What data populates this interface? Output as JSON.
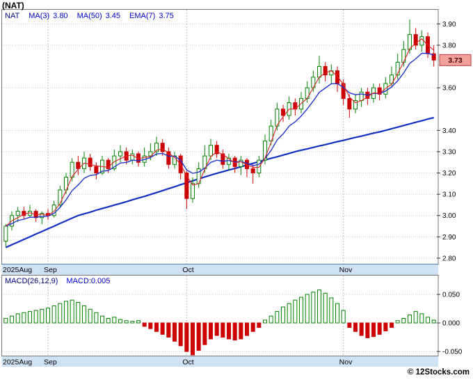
{
  "title": "(NAT)",
  "watermark": "© 12Stocks.com",
  "main_legend": {
    "symbol": "NAT",
    "items": [
      {
        "label": "MA(3)",
        "value": "3.80"
      },
      {
        "label": "MA(50)",
        "value": "3.45"
      },
      {
        "label": "EMA(7)",
        "value": "3.75"
      }
    ]
  },
  "macd_legend": {
    "label": "MACD(26,12,9)",
    "value_label": "MACD:0.005"
  },
  "colors": {
    "up": "#008000",
    "down": "#cc0000",
    "ma3": "#dd2222",
    "ema7": "#2233cc",
    "ma50": "#1030c0",
    "band_bg": "#cfe2f4",
    "band_line": "#4f7fb5",
    "badge_bg": "#f1a09a",
    "badge_border": "#b84040",
    "grid": "#c9c9c9",
    "border": "#777777"
  },
  "chart_data": [
    {
      "type": "candlestick",
      "title": "(NAT)",
      "ylabel": "Price",
      "ylim": [
        2.78,
        3.96
      ],
      "current_price": "3.73",
      "y_ticks": [
        {
          "label": "3.90",
          "value": 3.9
        },
        {
          "label": "3.80",
          "value": 3.8
        },
        {
          "label": "3.60",
          "value": 3.6
        },
        {
          "label": "3.40",
          "value": 3.4
        },
        {
          "label": "3.30",
          "value": 3.3
        },
        {
          "label": "3.20",
          "value": 3.2
        },
        {
          "label": "3.10",
          "value": 3.1
        },
        {
          "label": "3.00",
          "value": 3.0
        },
        {
          "label": "2.90",
          "value": 2.9
        },
        {
          "label": "2.80",
          "value": 2.8
        }
      ],
      "x_axis_labels": [
        {
          "label": "2025Aug",
          "index": 0
        },
        {
          "label": "Sep",
          "index": 7
        },
        {
          "label": "Oct",
          "index": 30
        },
        {
          "label": "Nov",
          "index": 56
        }
      ],
      "month_gridline_indices": [
        7,
        30,
        56
      ],
      "ohlc_format": "open-high-low-close",
      "candles_ohlc": [
        [
          2.88,
          2.96,
          2.85,
          2.95
        ],
        [
          2.95,
          3.02,
          2.93,
          3.0
        ],
        [
          3.0,
          3.04,
          2.97,
          3.02
        ],
        [
          3.02,
          3.04,
          2.98,
          3.0
        ],
        [
          3.0,
          3.05,
          2.99,
          3.02
        ],
        [
          3.02,
          3.03,
          2.97,
          2.99
        ],
        [
          2.99,
          3.02,
          2.96,
          3.01
        ],
        [
          3.01,
          3.03,
          2.98,
          3.0
        ],
        [
          3.0,
          3.07,
          2.99,
          3.05
        ],
        [
          3.05,
          3.14,
          3.04,
          3.12
        ],
        [
          3.12,
          3.2,
          3.1,
          3.18
        ],
        [
          3.18,
          3.27,
          3.16,
          3.25
        ],
        [
          3.25,
          3.28,
          3.19,
          3.22
        ],
        [
          3.22,
          3.3,
          3.2,
          3.27
        ],
        [
          3.27,
          3.29,
          3.21,
          3.23
        ],
        [
          3.23,
          3.25,
          3.17,
          3.2
        ],
        [
          3.2,
          3.28,
          3.19,
          3.26
        ],
        [
          3.26,
          3.27,
          3.2,
          3.22
        ],
        [
          3.22,
          3.31,
          3.21,
          3.28
        ],
        [
          3.28,
          3.33,
          3.25,
          3.3
        ],
        [
          3.3,
          3.32,
          3.24,
          3.26
        ],
        [
          3.26,
          3.31,
          3.24,
          3.29
        ],
        [
          3.29,
          3.3,
          3.23,
          3.25
        ],
        [
          3.25,
          3.32,
          3.23,
          3.28
        ],
        [
          3.28,
          3.34,
          3.26,
          3.3
        ],
        [
          3.3,
          3.37,
          3.28,
          3.34
        ],
        [
          3.34,
          3.36,
          3.28,
          3.3
        ],
        [
          3.3,
          3.32,
          3.22,
          3.24
        ],
        [
          3.24,
          3.3,
          3.22,
          3.28
        ],
        [
          3.28,
          3.29,
          3.17,
          3.2
        ],
        [
          3.2,
          3.21,
          3.03,
          3.08
        ],
        [
          3.08,
          3.18,
          3.06,
          3.15
        ],
        [
          3.15,
          3.25,
          3.13,
          3.22
        ],
        [
          3.22,
          3.33,
          3.2,
          3.28
        ],
        [
          3.28,
          3.36,
          3.26,
          3.33
        ],
        [
          3.33,
          3.35,
          3.27,
          3.29
        ],
        [
          3.29,
          3.31,
          3.22,
          3.24
        ],
        [
          3.24,
          3.29,
          3.21,
          3.27
        ],
        [
          3.27,
          3.28,
          3.2,
          3.23
        ],
        [
          3.23,
          3.28,
          3.19,
          3.26
        ],
        [
          3.26,
          3.27,
          3.18,
          3.22
        ],
        [
          3.22,
          3.24,
          3.15,
          3.2
        ],
        [
          3.2,
          3.28,
          3.18,
          3.26
        ],
        [
          3.26,
          3.38,
          3.24,
          3.35
        ],
        [
          3.35,
          3.45,
          3.33,
          3.42
        ],
        [
          3.42,
          3.53,
          3.4,
          3.5
        ],
        [
          3.5,
          3.52,
          3.44,
          3.47
        ],
        [
          3.47,
          3.56,
          3.45,
          3.53
        ],
        [
          3.53,
          3.55,
          3.47,
          3.5
        ],
        [
          3.5,
          3.58,
          3.48,
          3.55
        ],
        [
          3.55,
          3.63,
          3.53,
          3.6
        ],
        [
          3.6,
          3.68,
          3.58,
          3.65
        ],
        [
          3.65,
          3.75,
          3.62,
          3.7
        ],
        [
          3.7,
          3.72,
          3.63,
          3.66
        ],
        [
          3.66,
          3.71,
          3.62,
          3.68
        ],
        [
          3.68,
          3.7,
          3.58,
          3.62
        ],
        [
          3.62,
          3.64,
          3.52,
          3.55
        ],
        [
          3.55,
          3.57,
          3.46,
          3.5
        ],
        [
          3.5,
          3.57,
          3.48,
          3.54
        ],
        [
          3.54,
          3.6,
          3.51,
          3.58
        ],
        [
          3.58,
          3.6,
          3.52,
          3.55
        ],
        [
          3.55,
          3.62,
          3.53,
          3.6
        ],
        [
          3.6,
          3.62,
          3.54,
          3.57
        ],
        [
          3.57,
          3.65,
          3.55,
          3.62
        ],
        [
          3.62,
          3.7,
          3.6,
          3.66
        ],
        [
          3.66,
          3.76,
          3.64,
          3.72
        ],
        [
          3.72,
          3.82,
          3.7,
          3.78
        ],
        [
          3.78,
          3.92,
          3.76,
          3.85
        ],
        [
          3.85,
          3.88,
          3.78,
          3.8
        ],
        [
          3.8,
          3.87,
          3.77,
          3.84
        ],
        [
          3.84,
          3.86,
          3.74,
          3.76
        ],
        [
          3.76,
          3.8,
          3.7,
          3.73
        ]
      ],
      "ma50": [
        2.85,
        2.863,
        2.875,
        2.888,
        2.9,
        2.913,
        2.925,
        2.938,
        2.95,
        2.963,
        2.975,
        2.988,
        3.0,
        3.008,
        3.016,
        3.025,
        3.033,
        3.041,
        3.049,
        3.057,
        3.065,
        3.074,
        3.082,
        3.09,
        3.099,
        3.108,
        3.117,
        3.126,
        3.135,
        3.145,
        3.154,
        3.163,
        3.172,
        3.181,
        3.19,
        3.198,
        3.206,
        3.214,
        3.221,
        3.229,
        3.237,
        3.245,
        3.253,
        3.261,
        3.269,
        3.276,
        3.284,
        3.292,
        3.3,
        3.307,
        3.313,
        3.32,
        3.327,
        3.333,
        3.34,
        3.347,
        3.353,
        3.36,
        3.367,
        3.373,
        3.38,
        3.387,
        3.393,
        3.4,
        3.408,
        3.415,
        3.423,
        3.43,
        3.438,
        3.445,
        3.453,
        3.46
      ]
    },
    {
      "type": "bar",
      "title": "MACD(26,12,9)",
      "ylabel": "MACD",
      "ylim": [
        -0.065,
        0.08
      ],
      "y_ticks": [
        {
          "label": "0.050",
          "value": 0.05
        },
        {
          "label": "0.000",
          "value": 0.0
        },
        {
          "label": "-0.050",
          "value": -0.05
        }
      ],
      "values": [
        0.008,
        0.012,
        0.016,
        0.018,
        0.02,
        0.022,
        0.024,
        0.026,
        0.03,
        0.034,
        0.038,
        0.04,
        0.036,
        0.03,
        0.024,
        0.018,
        0.012,
        0.008,
        0.01,
        0.006,
        0.004,
        0.003,
        0.004,
        -0.006,
        -0.01,
        -0.015,
        -0.02,
        -0.025,
        -0.032,
        -0.04,
        -0.05,
        -0.056,
        -0.048,
        -0.038,
        -0.028,
        -0.022,
        -0.025,
        -0.028,
        -0.03,
        -0.028,
        -0.022,
        -0.015,
        -0.008,
        0.005,
        0.012,
        0.02,
        0.028,
        0.034,
        0.04,
        0.045,
        0.05,
        0.054,
        0.058,
        0.052,
        0.044,
        0.034,
        0.022,
        -0.008,
        -0.015,
        -0.022,
        -0.026,
        -0.024,
        -0.02,
        -0.014,
        -0.008,
        0.004,
        0.008,
        0.014,
        0.02,
        0.016,
        0.01,
        0.005
      ]
    }
  ]
}
